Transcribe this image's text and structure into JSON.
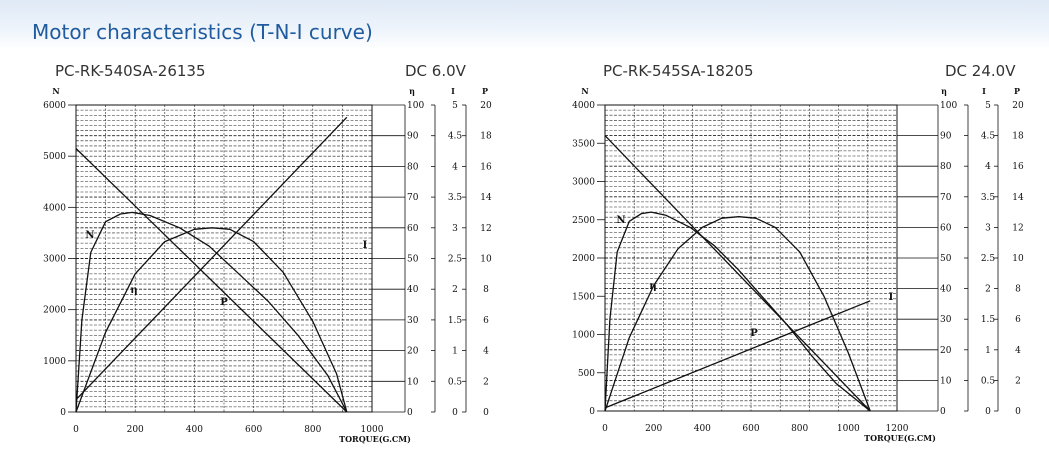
{
  "page": {
    "title": "Motor characteristics (T-N-I curve)"
  },
  "charts": [
    {
      "model": "PC-RK-540SA-26135",
      "voltage": "DC 6.0V"
    },
    {
      "model": "PC-RK-545SA-18205",
      "voltage": "DC 24.0V"
    }
  ],
  "chart_data": [
    {
      "type": "line",
      "title": "PC-RK-540SA-26135",
      "xlabel": "TORQUE(G.CM)",
      "xlim": [
        0,
        1000
      ],
      "x_ticks": [
        "0",
        "200",
        "400",
        "600",
        "800",
        "1000"
      ],
      "axes": {
        "N": {
          "label": "N",
          "lim": [
            0,
            6000
          ],
          "ticks": [
            "0",
            "1000",
            "2000",
            "3000",
            "4000",
            "5000",
            "6000"
          ]
        },
        "eta": {
          "label": "η",
          "lim": [
            0,
            100
          ],
          "ticks": [
            "0",
            "10",
            "20",
            "30",
            "40",
            "50",
            "60",
            "70",
            "80",
            "90",
            "100"
          ]
        },
        "I": {
          "label": "I",
          "lim": [
            0,
            5
          ],
          "ticks": [
            "0",
            "0.5",
            "1",
            "1.5",
            "2",
            "2.5",
            "3",
            "3.5",
            "4",
            "4.5",
            "5"
          ]
        },
        "P": {
          "label": "P",
          "lim": [
            0,
            20
          ],
          "ticks": [
            "0",
            "2",
            "4",
            "6",
            "8",
            "10",
            "12",
            "14",
            "16",
            "18",
            "20"
          ]
        }
      },
      "series": [
        {
          "name": "N",
          "axis": "N",
          "x": [
            0,
            915
          ],
          "y": [
            5150,
            0
          ]
        },
        {
          "name": "I",
          "axis": "I",
          "x": [
            0,
            915
          ],
          "y": [
            0.2,
            4.8
          ]
        },
        {
          "name": "η",
          "axis": "eta",
          "x": [
            0,
            20,
            50,
            100,
            150,
            190,
            250,
            350,
            450,
            550,
            650,
            750,
            850,
            915
          ],
          "y": [
            0,
            30,
            52,
            62,
            64.5,
            65,
            64,
            60,
            54,
            45,
            36,
            25,
            12,
            0
          ]
        },
        {
          "name": "P",
          "axis": "P",
          "x": [
            0,
            100,
            200,
            300,
            400,
            460,
            520,
            600,
            700,
            800,
            880,
            915
          ],
          "y": [
            0,
            5.2,
            9.0,
            11.1,
            11.9,
            12.0,
            11.9,
            11.1,
            9.1,
            5.9,
            2.5,
            0
          ]
        }
      ]
    },
    {
      "type": "line",
      "title": "PC-RK-545SA-18205",
      "xlabel": "TORQUE(G.CM)",
      "xlim": [
        0,
        1200
      ],
      "x_ticks": [
        "0",
        "200",
        "400",
        "600",
        "800",
        "1000",
        "1200"
      ],
      "axes": {
        "N": {
          "label": "N",
          "lim": [
            0,
            4000
          ],
          "ticks": [
            "0",
            "500",
            "1000",
            "1500",
            "2000",
            "2500",
            "3000",
            "3500",
            "4000"
          ]
        },
        "eta": {
          "label": "η",
          "lim": [
            0,
            100
          ],
          "ticks": [
            "0",
            "10",
            "20",
            "30",
            "40",
            "50",
            "60",
            "70",
            "80",
            "90",
            "100"
          ]
        },
        "I": {
          "label": "I",
          "lim": [
            0,
            5
          ],
          "ticks": [
            "0",
            "0.5",
            "1",
            "1.5",
            "2",
            "2.5",
            "3",
            "3.5",
            "4",
            "4.5",
            "5"
          ]
        },
        "P": {
          "label": "P",
          "lim": [
            0,
            20
          ],
          "ticks": [
            "0",
            "2",
            "4",
            "6",
            "8",
            "10",
            "12",
            "14",
            "16",
            "18",
            "20"
          ]
        }
      },
      "series": [
        {
          "name": "N",
          "axis": "N",
          "x": [
            0,
            1090
          ],
          "y": [
            3600,
            0
          ]
        },
        {
          "name": "I",
          "axis": "I",
          "x": [
            0,
            1090
          ],
          "y": [
            0.05,
            1.8
          ]
        },
        {
          "name": "η",
          "axis": "eta",
          "x": [
            0,
            20,
            50,
            100,
            150,
            190,
            250,
            350,
            450,
            550,
            650,
            750,
            850,
            950,
            1090
          ],
          "y": [
            0,
            30,
            52,
            62,
            64.5,
            65,
            64,
            60,
            54,
            46,
            37,
            28,
            18,
            9,
            0
          ]
        },
        {
          "name": "P",
          "axis": "P",
          "x": [
            0,
            100,
            200,
            300,
            400,
            480,
            550,
            620,
            700,
            800,
            900,
            1000,
            1090
          ],
          "y": [
            0,
            4.8,
            8.2,
            10.6,
            12.0,
            12.6,
            12.7,
            12.6,
            12.0,
            10.4,
            7.5,
            3.8,
            0
          ]
        }
      ]
    }
  ]
}
